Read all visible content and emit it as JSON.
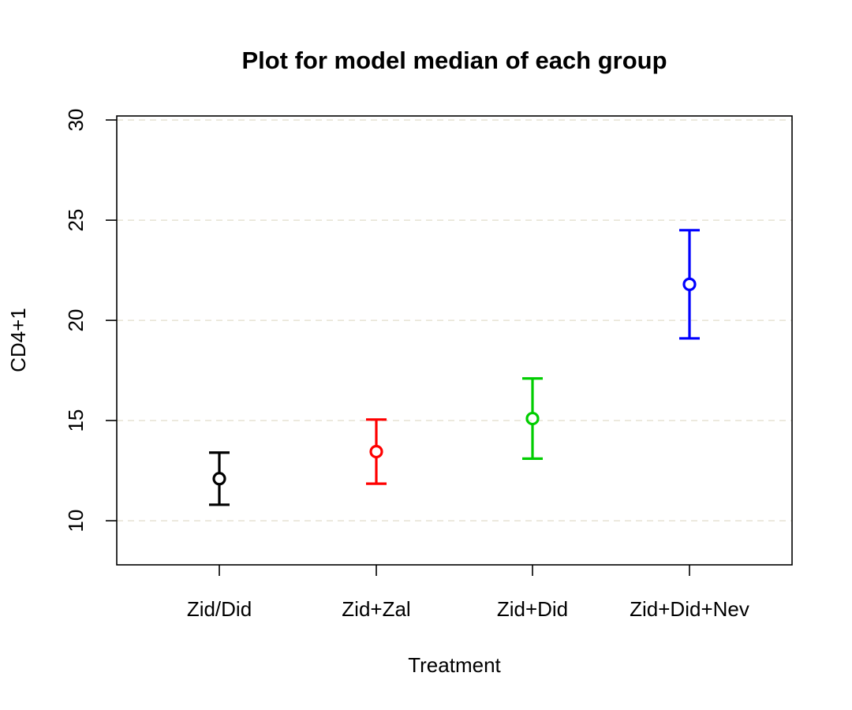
{
  "chart_data": {
    "type": "scatter",
    "title": "Plot for model median of each group",
    "xlabel": "Treatment",
    "ylabel": "CD4+1",
    "categories": [
      "Zid/Did",
      "Zid+Zal",
      "Zid+Did",
      "Zid+Did+Nev"
    ],
    "ylim": [
      7.8,
      30.2
    ],
    "yticks": [
      10,
      15,
      20,
      25,
      30
    ],
    "grid": "horizontal-dashed",
    "series": [
      {
        "category": "Zid/Did",
        "median": 12.1,
        "lower": 10.8,
        "upper": 13.4,
        "color": "#000000"
      },
      {
        "category": "Zid+Zal",
        "median": 13.45,
        "lower": 11.85,
        "upper": 15.05,
        "color": "#ff0000"
      },
      {
        "category": "Zid+Did",
        "median": 15.1,
        "lower": 13.1,
        "upper": 17.1,
        "color": "#00cd00"
      },
      {
        "category": "Zid+Did+Nev",
        "median": 21.8,
        "lower": 19.1,
        "upper": 24.5,
        "color": "#0000ff"
      }
    ]
  }
}
